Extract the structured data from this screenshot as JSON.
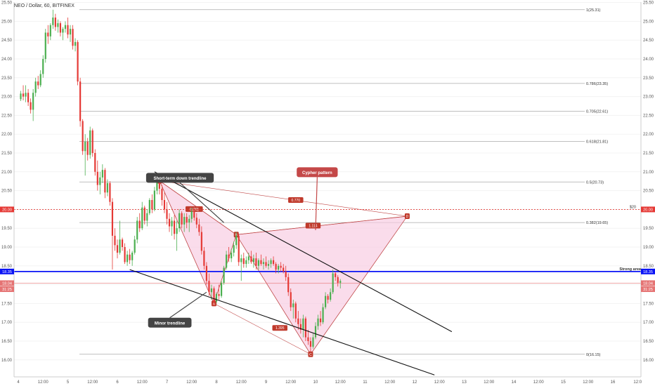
{
  "symbol": "NEO / Dollar, 60, BITFINEX",
  "colors": {
    "up": "#4caf50",
    "down": "#e53935",
    "fib": "#aaaaaa",
    "pattern_fill": "#f8c9e0",
    "pattern_line": "#c04848",
    "support": "#0a13f5",
    "resistance": "#e53935",
    "trend": "#111111",
    "callout_dark": "#444444",
    "callout_red": "#c44848"
  },
  "chart_data": {
    "type": "candlestick",
    "title": "NEO / Dollar, 60, BITFINEX",
    "x_ticks": [
      "4",
      "12:00",
      "5",
      "12:00",
      "6",
      "12:00",
      "7",
      "12:00",
      "8",
      "12:00",
      "9",
      "12:00",
      "10",
      "12:00",
      "11",
      "12:00",
      "12",
      "12:00",
      "13",
      "12:00",
      "14",
      "12:00",
      "15",
      "12:00",
      "16",
      "12:0"
    ],
    "y_ticks": [
      "25.50",
      "25.00",
      "24.50",
      "24.00",
      "23.50",
      "23.00",
      "22.50",
      "22.00",
      "21.50",
      "21.00",
      "20.50",
      "20.00",
      "19.50",
      "19.00",
      "18.50",
      "18.00",
      "17.50",
      "17.00",
      "16.50",
      "16.00"
    ],
    "ylim": [
      15.55,
      25.7
    ],
    "xlim": [
      3.9,
      16.5
    ],
    "candles": [
      [
        4.05,
        22.93,
        23.15,
        22.88,
        23.08
      ],
      [
        4.1,
        23.08,
        23.3,
        22.9,
        23.0
      ],
      [
        4.15,
        23.0,
        23.3,
        22.85,
        23.1
      ],
      [
        4.2,
        23.1,
        23.2,
        22.75,
        22.85
      ],
      [
        4.25,
        22.85,
        22.95,
        22.55,
        22.65
      ],
      [
        4.3,
        22.65,
        23.2,
        22.35,
        23.1
      ],
      [
        4.35,
        23.1,
        23.5,
        23.0,
        23.4
      ],
      [
        4.4,
        23.4,
        23.55,
        23.2,
        23.3
      ],
      [
        4.45,
        23.3,
        23.7,
        23.25,
        23.6
      ],
      [
        4.5,
        23.6,
        24.1,
        23.5,
        24.0
      ],
      [
        4.55,
        24.0,
        24.8,
        23.9,
        24.7
      ],
      [
        4.6,
        24.7,
        24.9,
        24.4,
        24.6
      ],
      [
        4.65,
        24.6,
        24.95,
        24.5,
        24.9
      ],
      [
        4.7,
        24.9,
        25.31,
        24.8,
        25.1
      ],
      [
        4.75,
        25.1,
        25.2,
        24.75,
        24.85
      ],
      [
        4.8,
        24.85,
        25.05,
        24.7,
        24.95
      ],
      [
        4.85,
        24.95,
        25.0,
        24.6,
        24.7
      ],
      [
        4.9,
        24.7,
        24.85,
        24.5,
        24.8
      ],
      [
        4.95,
        24.8,
        25.0,
        24.7,
        24.9
      ],
      [
        5.0,
        24.9,
        25.1,
        24.55,
        24.65
      ],
      [
        5.05,
        24.65,
        24.9,
        24.45,
        24.8
      ],
      [
        5.1,
        24.8,
        24.9,
        24.25,
        24.35
      ],
      [
        5.15,
        24.35,
        24.55,
        24.2,
        24.45
      ],
      [
        5.2,
        24.45,
        24.5,
        23.3,
        23.4
      ],
      [
        5.25,
        23.4,
        23.5,
        22.2,
        22.35
      ],
      [
        5.3,
        22.35,
        22.4,
        21.45,
        21.55
      ],
      [
        5.35,
        21.55,
        22.0,
        20.9,
        21.8
      ],
      [
        5.4,
        21.8,
        21.9,
        21.3,
        21.45
      ],
      [
        5.45,
        21.45,
        22.2,
        21.35,
        22.1
      ],
      [
        5.5,
        22.1,
        22.15,
        21.4,
        21.5
      ],
      [
        5.55,
        21.5,
        21.6,
        20.9,
        21.0
      ],
      [
        5.6,
        21.0,
        21.3,
        20.5,
        20.65
      ],
      [
        5.65,
        20.65,
        21.0,
        20.4,
        20.85
      ],
      [
        5.7,
        20.85,
        21.2,
        20.7,
        21.05
      ],
      [
        5.75,
        21.05,
        21.1,
        20.3,
        20.45
      ],
      [
        5.8,
        20.45,
        20.8,
        20.35,
        20.7
      ],
      [
        5.85,
        20.7,
        20.75,
        20.1,
        20.2
      ],
      [
        5.9,
        20.2,
        20.3,
        18.4,
        19.3
      ],
      [
        5.95,
        19.3,
        19.5,
        18.9,
        19.05
      ],
      [
        6.0,
        19.05,
        19.2,
        18.7,
        18.85
      ],
      [
        6.05,
        18.85,
        19.7,
        18.8,
        19.2
      ],
      [
        6.1,
        19.2,
        19.25,
        18.9,
        19.0
      ],
      [
        6.15,
        19.0,
        19.1,
        18.55,
        18.6
      ],
      [
        6.2,
        18.6,
        18.9,
        18.5,
        18.8
      ],
      [
        6.25,
        18.8,
        18.95,
        18.55,
        18.65
      ],
      [
        6.3,
        18.65,
        18.9,
        18.5,
        18.85
      ],
      [
        6.35,
        18.85,
        19.3,
        18.8,
        19.2
      ],
      [
        6.4,
        19.2,
        19.8,
        19.1,
        19.7
      ],
      [
        6.45,
        19.7,
        19.9,
        19.4,
        19.5
      ],
      [
        6.5,
        19.5,
        20.2,
        19.45,
        20.05
      ],
      [
        6.55,
        20.05,
        20.1,
        19.6,
        19.7
      ],
      [
        6.6,
        19.7,
        20.0,
        19.55,
        19.9
      ],
      [
        6.65,
        19.9,
        20.3,
        19.85,
        20.25
      ],
      [
        6.7,
        20.25,
        20.4,
        19.9,
        20.0
      ],
      [
        6.75,
        20.0,
        20.6,
        19.95,
        20.5
      ],
      [
        6.8,
        20.5,
        20.85,
        20.4,
        20.76
      ],
      [
        6.85,
        20.76,
        20.8,
        20.4,
        20.55
      ],
      [
        6.9,
        20.55,
        20.65,
        20.1,
        20.25
      ],
      [
        6.95,
        20.25,
        20.45,
        19.9,
        20.0
      ],
      [
        7.0,
        20.0,
        20.2,
        19.6,
        19.75
      ],
      [
        7.05,
        19.75,
        19.9,
        19.4,
        19.55
      ],
      [
        7.1,
        19.55,
        19.8,
        19.3,
        19.7
      ],
      [
        7.15,
        19.7,
        19.85,
        19.2,
        19.35
      ],
      [
        7.2,
        19.35,
        19.7,
        18.9,
        19.5
      ],
      [
        7.25,
        19.5,
        20.0,
        19.4,
        19.9
      ],
      [
        7.3,
        19.9,
        19.95,
        19.5,
        19.6
      ],
      [
        7.35,
        19.6,
        19.9,
        19.4,
        19.8
      ],
      [
        7.4,
        19.8,
        19.9,
        19.5,
        19.65
      ],
      [
        7.45,
        19.65,
        19.85,
        19.4,
        19.75
      ],
      [
        7.5,
        19.75,
        20.05,
        19.65,
        19.95
      ],
      [
        7.55,
        19.95,
        20.01,
        19.7,
        19.78
      ],
      [
        7.6,
        19.78,
        19.9,
        19.5,
        19.6
      ],
      [
        7.65,
        19.6,
        19.75,
        19.3,
        19.4
      ],
      [
        7.7,
        19.4,
        19.55,
        18.8,
        18.9
      ],
      [
        7.75,
        18.9,
        19.0,
        18.4,
        18.5
      ],
      [
        7.8,
        18.5,
        18.6,
        18.0,
        18.1
      ],
      [
        7.85,
        18.1,
        18.3,
        17.7,
        17.8
      ],
      [
        7.9,
        17.8,
        18.0,
        17.6,
        17.9
      ],
      [
        7.95,
        17.9,
        17.95,
        17.45,
        17.55
      ],
      [
        8.0,
        17.55,
        17.8,
        17.5,
        17.75
      ],
      [
        8.05,
        17.75,
        18.0,
        17.6,
        17.7
      ],
      [
        8.1,
        17.7,
        18.1,
        17.65,
        18.05
      ],
      [
        8.15,
        18.05,
        18.5,
        18.0,
        18.45
      ],
      [
        8.2,
        18.45,
        18.9,
        18.4,
        18.8
      ],
      [
        8.25,
        18.8,
        19.0,
        18.6,
        18.7
      ],
      [
        8.3,
        18.7,
        18.95,
        18.6,
        18.85
      ],
      [
        8.35,
        18.85,
        19.15,
        18.75,
        19.05
      ],
      [
        8.4,
        19.05,
        19.4,
        18.95,
        19.3
      ],
      [
        8.45,
        19.3,
        19.35,
        18.5,
        18.6
      ],
      [
        8.5,
        18.6,
        18.8,
        18.1,
        18.7
      ],
      [
        8.55,
        18.7,
        18.85,
        18.45,
        18.55
      ],
      [
        8.6,
        18.55,
        18.75,
        18.45,
        18.65
      ],
      [
        8.65,
        18.65,
        18.85,
        18.55,
        18.75
      ],
      [
        8.7,
        18.75,
        18.9,
        18.55,
        18.6
      ],
      [
        8.75,
        18.6,
        18.8,
        18.45,
        18.7
      ],
      [
        8.8,
        18.7,
        18.85,
        18.4,
        18.5
      ],
      [
        8.85,
        18.5,
        18.7,
        18.4,
        18.65
      ],
      [
        8.9,
        18.65,
        18.8,
        18.5,
        18.55
      ],
      [
        8.95,
        18.55,
        18.7,
        18.4,
        18.6
      ],
      [
        9.0,
        18.6,
        18.75,
        18.45,
        18.5
      ],
      [
        9.05,
        18.5,
        18.65,
        18.4,
        18.55
      ],
      [
        9.1,
        18.55,
        18.7,
        18.45,
        18.65
      ],
      [
        9.15,
        18.65,
        18.75,
        18.5,
        18.55
      ],
      [
        9.2,
        18.55,
        18.6,
        18.3,
        18.4
      ],
      [
        9.25,
        18.4,
        18.55,
        18.3,
        18.5
      ],
      [
        9.3,
        18.5,
        18.6,
        18.35,
        18.45
      ],
      [
        9.35,
        18.45,
        18.55,
        18.3,
        18.35
      ],
      [
        9.4,
        18.35,
        18.5,
        18.1,
        18.2
      ],
      [
        9.45,
        18.2,
        18.3,
        17.7,
        17.8
      ],
      [
        9.5,
        17.8,
        17.9,
        17.3,
        17.4
      ],
      [
        9.55,
        17.4,
        17.6,
        17.1,
        17.5
      ],
      [
        9.6,
        17.5,
        17.55,
        17.0,
        17.1
      ],
      [
        9.65,
        17.1,
        17.3,
        16.8,
        16.95
      ],
      [
        9.7,
        16.95,
        17.1,
        16.7,
        16.8
      ],
      [
        9.75,
        16.8,
        17.2,
        16.6,
        17.1
      ],
      [
        9.8,
        17.1,
        17.15,
        16.5,
        16.6
      ],
      [
        9.85,
        16.6,
        16.8,
        16.4,
        16.5
      ],
      [
        9.9,
        16.5,
        16.6,
        16.22,
        16.35
      ],
      [
        9.95,
        16.35,
        16.7,
        16.3,
        16.6
      ],
      [
        10.0,
        16.6,
        17.0,
        16.55,
        16.9
      ],
      [
        10.05,
        16.9,
        17.2,
        16.8,
        17.1
      ],
      [
        10.1,
        17.1,
        17.3,
        16.9,
        17.0
      ],
      [
        10.15,
        17.0,
        17.5,
        16.95,
        17.4
      ],
      [
        10.2,
        17.4,
        17.8,
        17.35,
        17.7
      ],
      [
        10.25,
        17.7,
        17.75,
        17.5,
        17.6
      ],
      [
        10.3,
        17.6,
        17.9,
        17.55,
        17.8
      ],
      [
        10.35,
        17.8,
        18.4,
        17.75,
        18.3
      ],
      [
        10.4,
        18.3,
        18.35,
        18.1,
        18.2
      ],
      [
        10.45,
        18.2,
        18.25,
        17.95,
        18.05
      ],
      [
        10.5,
        18.05,
        18.15,
        17.9,
        18.1
      ]
    ],
    "fib_levels": [
      {
        "label": "1(25.31)",
        "value": 25.31
      },
      {
        "label": "0.786(23.35)",
        "value": 23.35
      },
      {
        "label": "0.705(22.61)",
        "value": 22.61
      },
      {
        "label": "0.618(21.81)",
        "value": 21.81
      },
      {
        "label": "0.5(20.73)",
        "value": 20.73
      },
      {
        "label": "0.382(19.65)",
        "value": 19.65
      },
      {
        "label": "0(16.15)",
        "value": 16.15
      }
    ],
    "lines": {
      "support": {
        "value": 18.35,
        "label": "Strong area"
      },
      "resistance": {
        "value": 20.0,
        "label": "$20"
      },
      "red_thin": {
        "value": 18.04
      }
    },
    "price_tags": [
      {
        "value": 20.0,
        "label": "20.00",
        "color": "#e53935"
      },
      {
        "value": 18.35,
        "label": "18.35",
        "color": "#0a13f5"
      },
      {
        "value": 18.04,
        "label": "18.04",
        "color": "#e57373"
      },
      {
        "value": 17.88,
        "label": "31:25",
        "color": "#e57373"
      }
    ],
    "pattern": {
      "name": "Cypher pattern",
      "points": [
        {
          "label": "X",
          "x": 6.85,
          "y": 20.76
        },
        {
          "label": "A",
          "x": 7.95,
          "y": 17.5
        },
        {
          "label": "B",
          "x": 8.4,
          "y": 19.33
        },
        {
          "label": "C",
          "x": 9.9,
          "y": 16.15
        },
        {
          "label": "D",
          "x": 11.85,
          "y": 19.82
        }
      ],
      "ratios": [
        {
          "label": "0.[20]",
          "x": 7.55,
          "y": 20.01
        },
        {
          "label": "0.770",
          "x": 9.6,
          "y": 20.25
        },
        {
          "label": "1.114",
          "x": 9.95,
          "y": 19.57
        },
        {
          "label": "1.395",
          "x": 9.28,
          "y": 16.85
        }
      ]
    },
    "trendlines": [
      {
        "name": "Short-term down trendline",
        "from": [
          6.75,
          21.0
        ],
        "to": [
          12.75,
          16.75
        ]
      },
      {
        "name": "Minor trendline",
        "from": [
          6.25,
          18.4
        ],
        "to": [
          12.4,
          15.6
        ]
      }
    ],
    "callouts": [
      {
        "text": "Short-term down trendline",
        "x": 6.58,
        "y": 20.97,
        "anchor": [
          8.15,
          19.65
        ],
        "style": "dark"
      },
      {
        "text": "Cypher pattern",
        "x": 9.62,
        "y": 21.12,
        "anchor": [
          10.0,
          19.45
        ],
        "style": "red"
      },
      {
        "text": "Minor trendline",
        "x": 6.62,
        "y": 17.12,
        "anchor": [
          7.8,
          17.8
        ],
        "style": "dark"
      }
    ]
  }
}
